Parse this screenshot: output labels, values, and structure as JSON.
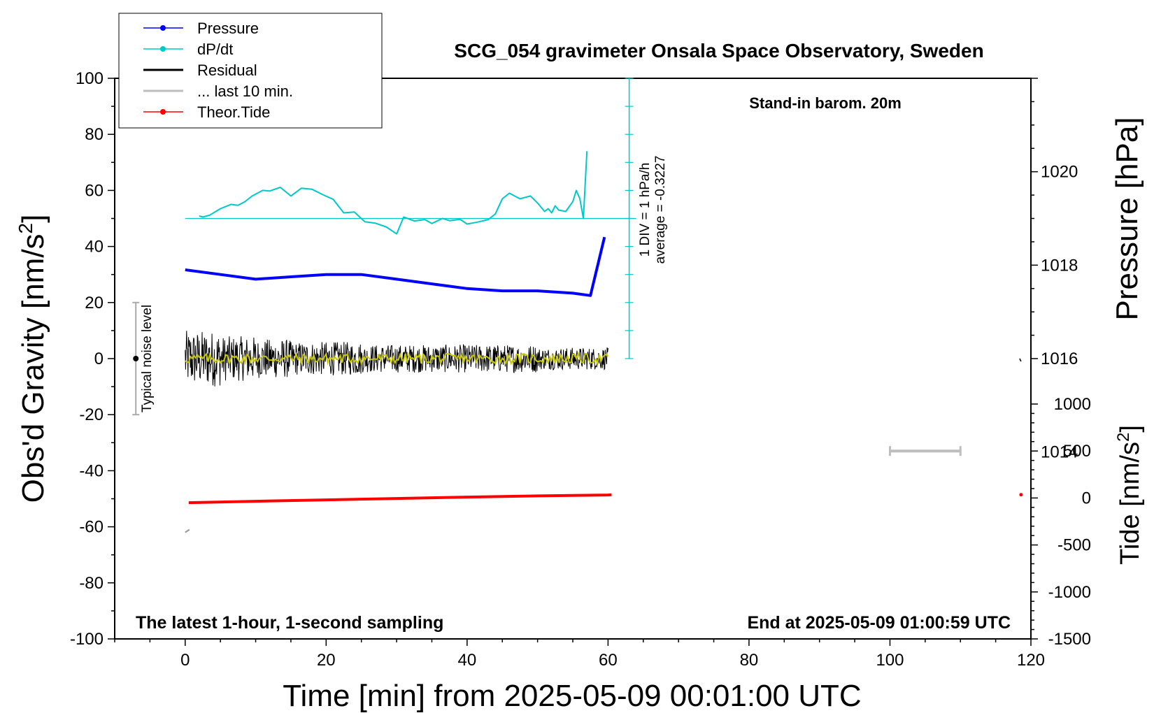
{
  "chart_data": {
    "type": "line",
    "title": "SCG_054 gravimeter Onsala Space Observatory, Sweden",
    "xlabel": "Time [min] from 2025-05-09 00:01:00 UTC",
    "ylabel_left": "Obs'd Gravity [nm/s",
    "ylabel_left_sup": "2",
    "ylabel_left_close": "]",
    "ylabel_right_top": "Pressure [hPa]",
    "ylabel_right_bottom": "Tide [nm/s",
    "ylabel_right_bottom_sup": "2",
    "ylabel_right_bottom_close": "]",
    "xlim": [
      -10,
      120
    ],
    "ylim": [
      -100,
      100
    ],
    "pressure_lim": [
      1010,
      1022
    ],
    "tide_lim": [
      -1500,
      1500
    ],
    "x_ticks": [
      0,
      20,
      40,
      60,
      80,
      100,
      120
    ],
    "y_ticks": [
      -100,
      -80,
      -60,
      -40,
      -20,
      0,
      20,
      40,
      60,
      80,
      100
    ],
    "pressure_ticks": [
      1014,
      1016,
      1018,
      1020
    ],
    "tide_ticks": [
      -1500,
      -1000,
      -500,
      0,
      500,
      1000
    ],
    "annotations": {
      "barometer": "Stand-in barom. 20m",
      "sampling": "The latest 1-hour, 1-second sampling",
      "end_time": "End at 2025-05-09 01:00:59 UTC",
      "div_scale": "1 DIV = 1 hPa/h",
      "average": "average = -0.3227",
      "noise_label": "Typical noise level"
    },
    "legend": [
      {
        "name": "Pressure",
        "color": "#0000ff",
        "marker": true
      },
      {
        "name": "dP/dt",
        "color": "#00c8c8",
        "marker": true
      },
      {
        "name": "Residual",
        "color": "#000000",
        "marker": false
      },
      {
        "name": "... last 10 min.",
        "color": "#bebebe",
        "marker": false
      },
      {
        "name": "Theor.Tide",
        "color": "#ff0000",
        "marker": true
      }
    ],
    "series": [
      {
        "name": "Pressure",
        "color": "#0000ff",
        "x": [
          0,
          5,
          10,
          15,
          20,
          25,
          30,
          35,
          40,
          45,
          50,
          55,
          57.5,
          59.5
        ],
        "values": [
          1017.9,
          1017.8,
          1017.7,
          1017.75,
          1017.8,
          1017.8,
          1017.7,
          1017.6,
          1017.5,
          1017.45,
          1017.45,
          1017.4,
          1017.35,
          1018.6
        ]
      },
      {
        "name": "dP/dt",
        "color": "#00c8c8",
        "x": [
          2,
          2.5,
          3.5,
          5,
          6.5,
          7.5,
          8.5,
          9.5,
          11,
          12,
          13.5,
          15,
          16.5,
          18,
          19.5,
          21,
          22.5,
          24,
          25.5,
          27,
          28.5,
          30,
          31,
          32.5,
          34,
          35,
          36.5,
          37.5,
          39,
          40,
          41.5,
          43,
          44,
          45,
          46,
          47.5,
          49,
          50,
          51,
          51.5,
          52,
          52.5,
          53,
          54,
          55,
          55.5,
          56,
          56.5,
          57
        ],
        "values": [
          0.09,
          0.05,
          0.12,
          0.35,
          0.5,
          0.47,
          0.6,
          0.8,
          1.0,
          0.98,
          1.11,
          0.8,
          1.08,
          1.04,
          0.85,
          0.68,
          0.2,
          0.23,
          -0.12,
          -0.17,
          -0.3,
          -0.55,
          0.05,
          -0.09,
          -0.04,
          -0.18,
          0.0,
          -0.08,
          -0.03,
          -0.2,
          -0.13,
          -0.04,
          0.16,
          0.7,
          0.9,
          0.7,
          0.8,
          0.55,
          0.25,
          0.35,
          0.2,
          0.45,
          0.3,
          0.25,
          0.6,
          1.0,
          0.7,
          0.0,
          2.4
        ]
      },
      {
        "name": "Residual",
        "color": "#000000",
        "x_range": [
          0,
          60
        ],
        "envelope": [
          10,
          8,
          7,
          6,
          6,
          5,
          5,
          5,
          5,
          5,
          4,
          4
        ]
      },
      {
        "name": "... last 10 min.",
        "color": "#bebebe",
        "x": [
          100,
          110
        ],
        "tide_value": 500
      },
      {
        "name": "Theor.Tide",
        "color": "#ff0000",
        "x": [
          0.5,
          10,
          20,
          30,
          40,
          50,
          60,
          60.5
        ],
        "tide_values": [
          -50,
          -35,
          -20,
          -5,
          10,
          22,
          32,
          34
        ]
      }
    ]
  }
}
